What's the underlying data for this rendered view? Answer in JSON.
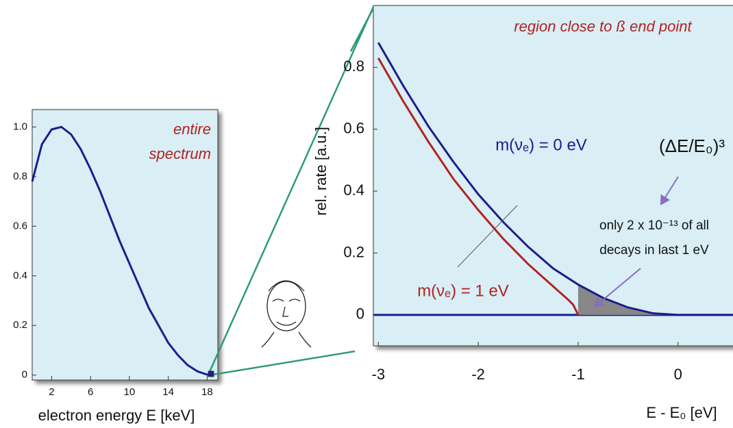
{
  "chart_data": [
    {
      "type": "line",
      "annotations": [
        "entire",
        "spectrum"
      ],
      "xlabel": "electron energy E [keV]",
      "xlim": [
        0,
        19.1
      ],
      "ylim": [
        -0.02,
        1.07
      ],
      "xticks": [
        2,
        6,
        10,
        14,
        18
      ],
      "yticks": [
        0,
        0.2,
        0.4,
        0.6,
        0.8,
        {
          "value": 1,
          "label": "1.0"
        }
      ],
      "series": [
        {
          "color": "#1c1c8c",
          "x": [
            0,
            1,
            2,
            3,
            4,
            5,
            6,
            7,
            8,
            9,
            10,
            11,
            12,
            13,
            14,
            15,
            16,
            17,
            18,
            18.6
          ],
          "values": [
            0.78,
            0.93,
            0.99,
            1.0,
            0.97,
            0.91,
            0.83,
            0.74,
            0.64,
            0.54,
            0.45,
            0.36,
            0.27,
            0.2,
            0.13,
            0.08,
            0.04,
            0.015,
            0.002,
            0
          ]
        }
      ]
    },
    {
      "type": "line",
      "title": "region close to ß end point",
      "xlabel": "E - E₀ [eV]",
      "ylabel": "rel. rate [a.u.]",
      "annotations": [
        "(ΔE/E₀)³",
        "only 2 x 10⁻¹³ of all",
        "decays in last 1 eV"
      ],
      "xlim": [
        -3.05,
        0.55
      ],
      "ylim": [
        -0.1,
        1.0
      ],
      "xticks": [
        -3,
        -2,
        -1,
        0
      ],
      "yticks": [
        0,
        0.2,
        0.4,
        0.6,
        0.8
      ],
      "series": [
        {
          "name": "m(νₑ) = 0 eV",
          "color": "#1c1c8c",
          "x": [
            -3,
            -2.75,
            -2.5,
            -2.25,
            -2,
            -1.75,
            -1.5,
            -1.25,
            -1,
            -0.75,
            -0.5,
            -0.25,
            0,
            0.55
          ],
          "values": [
            0.88,
            0.74,
            0.61,
            0.495,
            0.39,
            0.3,
            0.22,
            0.15,
            0.098,
            0.055,
            0.024,
            0.005,
            0,
            0
          ]
        },
        {
          "name": "m(νₑ) = 1 eV",
          "color": "#b22222",
          "x": [
            -3,
            -2.75,
            -2.5,
            -2.25,
            -2,
            -1.75,
            -1.5,
            -1.25,
            -1.1,
            -1.05,
            -1
          ],
          "values": [
            0.83,
            0.69,
            0.56,
            0.44,
            0.339,
            0.246,
            0.164,
            0.092,
            0.049,
            0.033,
            0
          ]
        }
      ]
    }
  ]
}
